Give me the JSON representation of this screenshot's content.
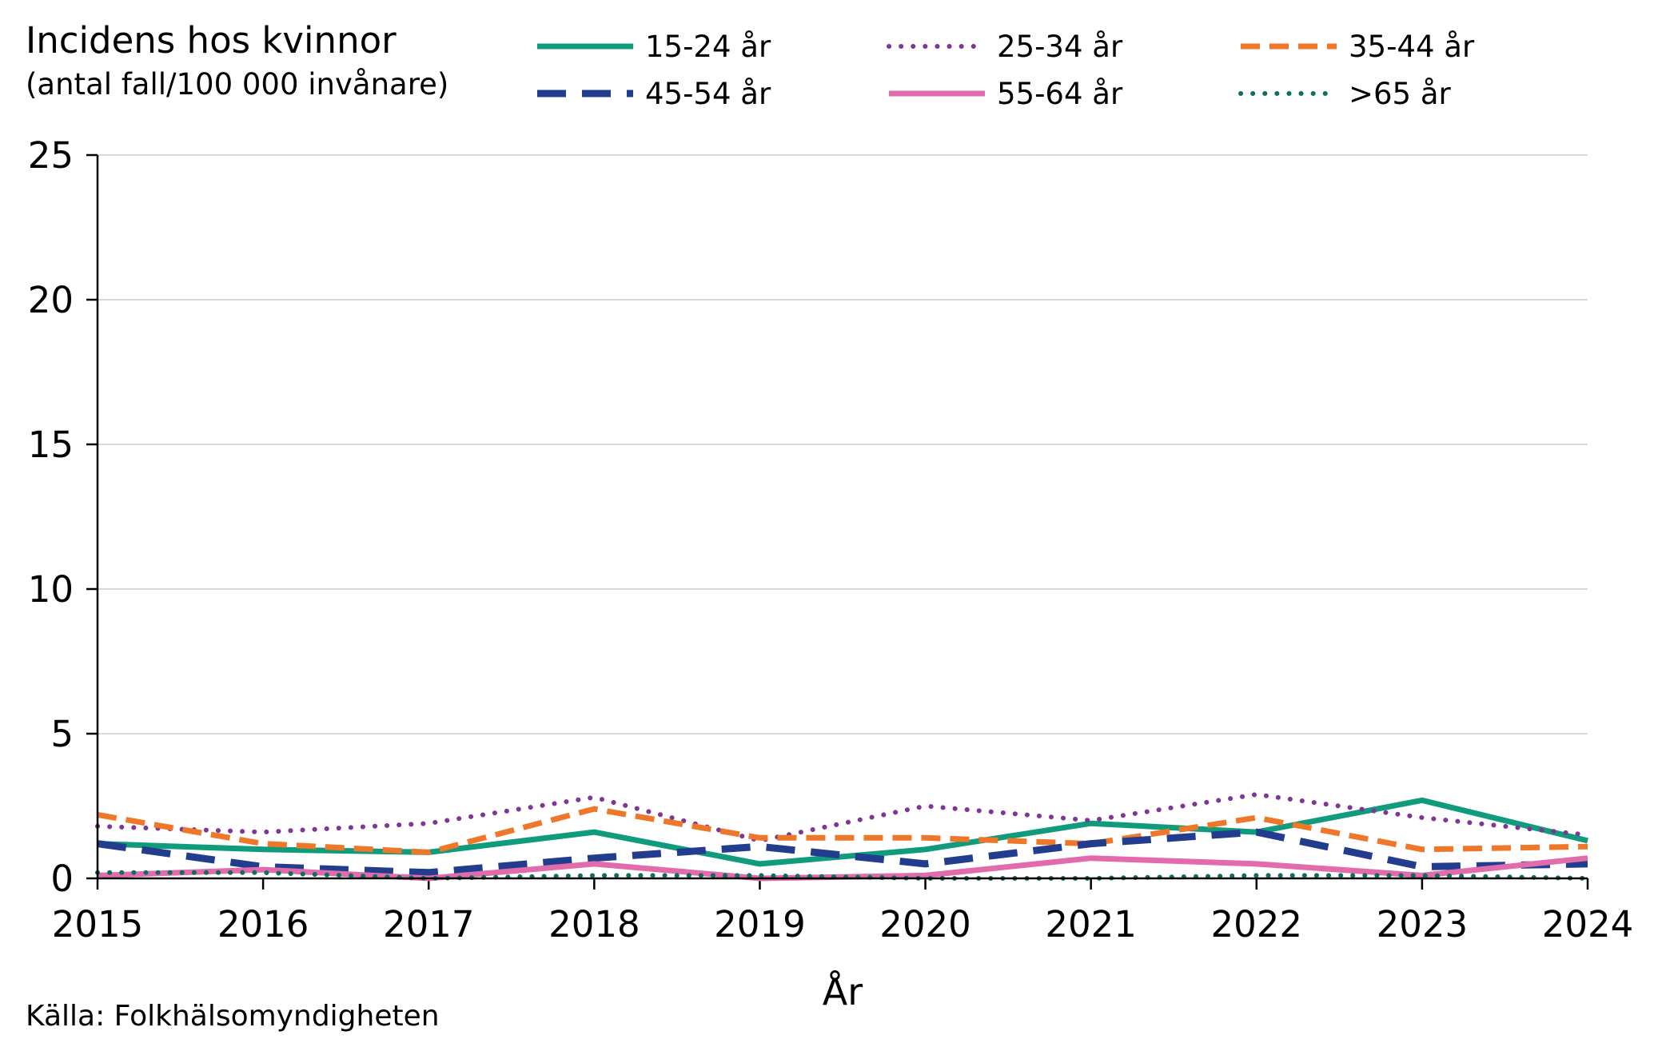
{
  "chart_data": {
    "type": "line",
    "title": "Incidens hos kvinnor",
    "subtitle": "(antal fall/100 000 invånare)",
    "xlabel": "År",
    "ylabel": "",
    "source": "Källa: Folkhälsomyndigheten",
    "x": [
      "2015",
      "2016",
      "2017",
      "2018",
      "2019",
      "2020",
      "2021",
      "2022",
      "2023",
      "2024"
    ],
    "yticks": [
      "0",
      "5",
      "10",
      "15",
      "20",
      "25"
    ],
    "ylim": [
      0,
      25
    ],
    "grid": "horizontal",
    "legend_position": "top",
    "series": [
      {
        "name": "15-24 år",
        "color": "#109B7C",
        "style": "solid",
        "values": [
          1.2,
          1.0,
          0.9,
          1.6,
          0.5,
          1.0,
          1.9,
          1.6,
          2.7,
          1.3
        ]
      },
      {
        "name": "25-34 år",
        "color": "#7E3794",
        "style": "dotted",
        "values": [
          1.8,
          1.6,
          1.9,
          2.8,
          1.3,
          2.5,
          2.0,
          2.9,
          2.1,
          1.5
        ]
      },
      {
        "name": "35-44 år",
        "color": "#EE7729",
        "style": "dashed",
        "values": [
          2.2,
          1.2,
          0.9,
          2.4,
          1.4,
          1.4,
          1.2,
          2.1,
          1.0,
          1.1
        ]
      },
      {
        "name": "45-54 år",
        "color": "#233D8E",
        "style": "longdash",
        "values": [
          1.2,
          0.4,
          0.2,
          0.7,
          1.1,
          0.5,
          1.2,
          1.6,
          0.4,
          0.5
        ]
      },
      {
        "name": "55-64 år",
        "color": "#E26BAB",
        "style": "solid",
        "values": [
          0.1,
          0.3,
          0.0,
          0.5,
          0.0,
          0.1,
          0.7,
          0.5,
          0.1,
          0.7
        ]
      },
      {
        "name": ">65 år",
        "color": "#0E6E62",
        "style": "dotted",
        "values": [
          0.2,
          0.2,
          0.0,
          0.1,
          0.1,
          0.0,
          0.0,
          0.1,
          0.1,
          0.0
        ]
      }
    ]
  }
}
